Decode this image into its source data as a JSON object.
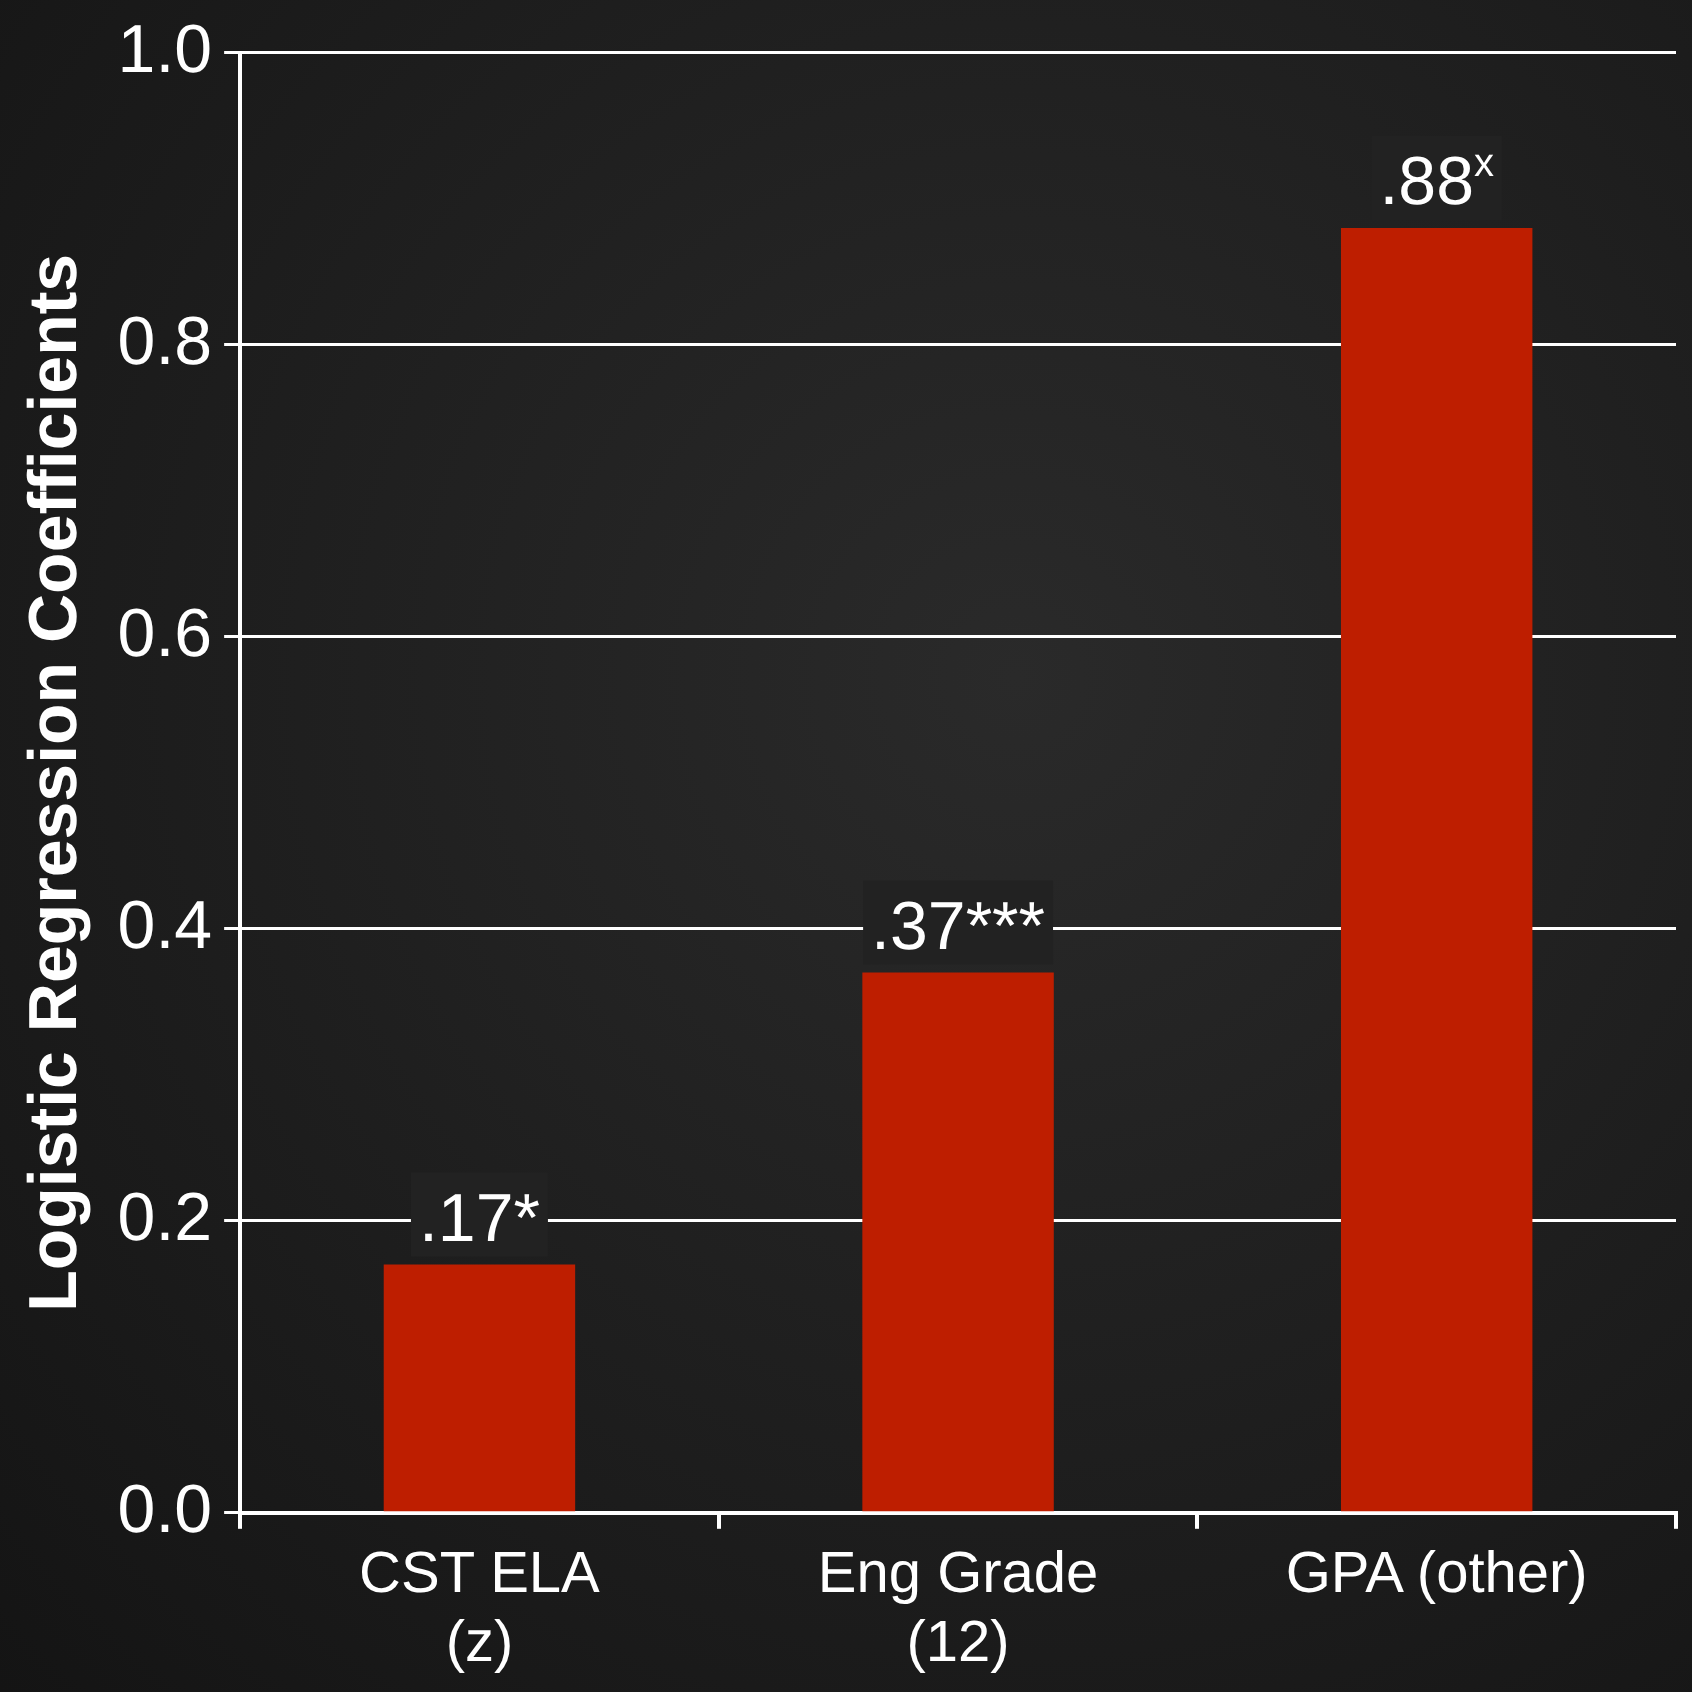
{
  "chart_data": {
    "type": "bar",
    "ylabel": "Logistic Regression Coefficients",
    "categories": [
      "CST ELA (z)",
      "Eng Grade (12)",
      "GPA (other)"
    ],
    "values": [
      0.17,
      0.37,
      0.88
    ],
    "color": "#be1e00",
    "value_labels": [
      ".17*",
      ".37***",
      ".88$^{x}$"
    ],
    "ylim": [
      0,
      1
    ],
    "yticks": [
      {
        "value": 0,
        "label": "0.0"
      },
      {
        "value": 0.2,
        "label": "0.2"
      },
      {
        "value": 0.4,
        "label": "0.4"
      },
      {
        "value": 0.6,
        "label": "0.6"
      },
      {
        "value": 0.8,
        "label": "0.8"
      },
      {
        "value": 1,
        "label": "1.0"
      }
    ],
    "grid": "y",
    "legend": false
  }
}
